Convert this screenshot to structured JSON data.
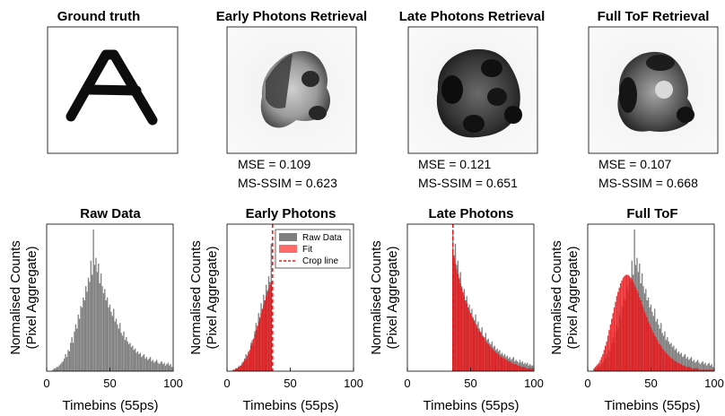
{
  "figure": {
    "image_titles": [
      "Ground truth",
      "Early Photons Retrieval",
      "Late Photons Retrieval",
      "Full ToF Retrieval"
    ],
    "metrics": [
      {
        "mse": "MSE = 0.109",
        "msssim": "MS-SSIM = 0.623"
      },
      {
        "mse": "MSE = 0.121",
        "msssim": "MS-SSIM = 0.651"
      },
      {
        "mse": "MSE = 0.107",
        "msssim": "MS-SSIM = 0.668"
      }
    ],
    "histogram_titles": [
      "Raw Data",
      "Early Photons",
      "Late Photons",
      "Full ToF"
    ],
    "xlabel": "Timebins (55ps)",
    "ylabel_line1": "Normalised Counts",
    "ylabel_line2": "(Pixel Aggregate)",
    "legend": {
      "raw": "Raw Data",
      "fit": "Fit",
      "crop": "Crop line"
    }
  },
  "colors": {
    "raw": "#7f7f7f",
    "fit": "#e8181c",
    "fit_light": "#ff6a6a",
    "crop": "#e8181c"
  },
  "chart_data": [
    {
      "type": "bar",
      "title": "Raw Data",
      "xlabel": "Timebins (55ps)",
      "ylabel": "Normalised Counts (Pixel Aggregate)",
      "xlim": [
        0,
        100
      ],
      "xticks": [
        "0",
        "50",
        "100"
      ],
      "x": [
        5,
        6,
        7,
        8,
        9,
        10,
        11,
        12,
        13,
        14,
        15,
        16,
        17,
        18,
        19,
        20,
        21,
        22,
        23,
        24,
        25,
        26,
        27,
        28,
        29,
        30,
        31,
        32,
        33,
        34,
        35,
        36,
        37,
        38,
        39,
        40,
        41,
        42,
        43,
        44,
        45,
        46,
        47,
        48,
        49,
        50,
        51,
        52,
        53,
        54,
        55,
        56,
        57,
        58,
        59,
        60,
        61,
        62,
        63,
        64,
        65,
        66,
        67,
        68,
        69,
        70,
        71,
        72,
        73,
        74,
        75,
        76,
        77,
        78,
        79,
        80,
        81,
        82,
        83,
        84,
        85,
        86,
        87,
        88,
        89,
        90,
        91,
        92,
        93,
        94,
        95,
        96,
        97,
        98,
        99
      ],
      "values": [
        0.01,
        0.02,
        0.02,
        0.03,
        0.03,
        0.04,
        0.05,
        0.06,
        0.07,
        0.09,
        0.12,
        0.1,
        0.15,
        0.14,
        0.2,
        0.24,
        0.2,
        0.28,
        0.33,
        0.3,
        0.4,
        0.37,
        0.46,
        0.45,
        0.52,
        0.5,
        0.6,
        0.56,
        0.66,
        0.63,
        0.78,
        0.68,
        1.0,
        0.75,
        0.8,
        0.7,
        0.76,
        0.62,
        0.69,
        0.6,
        0.55,
        0.58,
        0.5,
        0.52,
        0.45,
        0.47,
        0.42,
        0.39,
        0.44,
        0.35,
        0.37,
        0.33,
        0.3,
        0.34,
        0.27,
        0.25,
        0.28,
        0.22,
        0.24,
        0.21,
        0.19,
        0.2,
        0.17,
        0.18,
        0.15,
        0.16,
        0.13,
        0.14,
        0.12,
        0.13,
        0.1,
        0.11,
        0.12,
        0.09,
        0.1,
        0.08,
        0.09,
        0.1,
        0.07,
        0.08,
        0.06,
        0.07,
        0.08,
        0.06,
        0.05,
        0.06,
        0.07,
        0.05,
        0.06,
        0.04,
        0.05,
        0.06,
        0.04,
        0.05,
        0.03
      ]
    },
    {
      "type": "bar",
      "title": "Early Photons",
      "xlabel": "Timebins (55ps)",
      "ylabel": "Normalised Counts (Pixel Aggregate)",
      "xlim": [
        0,
        100
      ],
      "xticks": [
        "0",
        "50",
        "100"
      ],
      "crop_line": 36,
      "legend": [
        "Raw Data",
        "Fit",
        "Crop line"
      ],
      "legend_position": "top-right",
      "x": [
        5,
        6,
        7,
        8,
        9,
        10,
        11,
        12,
        13,
        14,
        15,
        16,
        17,
        18,
        19,
        20,
        21,
        22,
        23,
        24,
        25,
        26,
        27,
        28,
        29,
        30,
        31,
        32,
        33,
        34,
        35
      ],
      "raw_values": [
        0.01,
        0.01,
        0.02,
        0.02,
        0.03,
        0.04,
        0.04,
        0.06,
        0.07,
        0.09,
        0.12,
        0.08,
        0.14,
        0.12,
        0.2,
        0.22,
        0.18,
        0.28,
        0.34,
        0.29,
        0.41,
        0.37,
        0.48,
        0.44,
        0.54,
        0.5,
        0.61,
        0.57,
        0.67,
        0.63,
        0.9
      ],
      "fit_values": [
        0.01,
        0.01,
        0.02,
        0.02,
        0.03,
        0.03,
        0.04,
        0.05,
        0.06,
        0.08,
        0.09,
        0.11,
        0.13,
        0.15,
        0.18,
        0.2,
        0.23,
        0.26,
        0.29,
        0.32,
        0.35,
        0.38,
        0.41,
        0.44,
        0.47,
        0.5,
        0.53,
        0.56,
        0.58,
        0.61,
        0.63
      ]
    },
    {
      "type": "bar",
      "title": "Late Photons",
      "xlabel": "Timebins (55ps)",
      "ylabel": "Normalised Counts (Pixel Aggregate)",
      "xlim": [
        0,
        100
      ],
      "xticks": [
        "0",
        "50",
        "100"
      ],
      "crop_line": 36,
      "x": [
        36,
        37,
        38,
        39,
        40,
        41,
        42,
        43,
        44,
        45,
        46,
        47,
        48,
        49,
        50,
        51,
        52,
        53,
        54,
        55,
        56,
        57,
        58,
        59,
        60,
        61,
        62,
        63,
        64,
        65,
        66,
        67,
        68,
        69,
        70,
        71,
        72,
        73,
        74,
        75,
        76,
        77,
        78,
        79,
        80,
        81,
        82,
        83,
        84,
        85,
        86,
        87,
        88,
        89,
        90,
        91,
        92,
        93,
        94,
        95,
        96,
        97,
        98,
        99
      ],
      "raw_values": [
        1.0,
        0.82,
        0.9,
        0.75,
        0.78,
        0.66,
        0.7,
        0.6,
        0.55,
        0.58,
        0.5,
        0.53,
        0.45,
        0.47,
        0.41,
        0.44,
        0.38,
        0.36,
        0.4,
        0.33,
        0.35,
        0.3,
        0.28,
        0.31,
        0.25,
        0.24,
        0.27,
        0.22,
        0.23,
        0.2,
        0.19,
        0.21,
        0.17,
        0.18,
        0.15,
        0.16,
        0.14,
        0.15,
        0.12,
        0.13,
        0.11,
        0.12,
        0.1,
        0.11,
        0.09,
        0.1,
        0.08,
        0.09,
        0.1,
        0.07,
        0.08,
        0.07,
        0.06,
        0.08,
        0.06,
        0.07,
        0.05,
        0.06,
        0.05,
        0.06,
        0.04,
        0.05,
        0.04,
        0.04
      ],
      "fit_values": [
        0.84,
        0.8,
        0.76,
        0.72,
        0.69,
        0.65,
        0.62,
        0.59,
        0.56,
        0.53,
        0.5,
        0.48,
        0.45,
        0.43,
        0.41,
        0.39,
        0.37,
        0.35,
        0.33,
        0.31,
        0.3,
        0.28,
        0.27,
        0.25,
        0.24,
        0.23,
        0.21,
        0.2,
        0.19,
        0.18,
        0.17,
        0.16,
        0.15,
        0.14,
        0.13,
        0.13,
        0.12,
        0.11,
        0.1,
        0.1,
        0.09,
        0.09,
        0.08,
        0.08,
        0.07,
        0.07,
        0.06,
        0.06,
        0.05,
        0.05,
        0.05,
        0.04,
        0.04,
        0.04,
        0.03,
        0.03,
        0.03,
        0.03,
        0.02,
        0.02,
        0.02,
        0.02,
        0.02,
        0.02
      ]
    },
    {
      "type": "bar",
      "title": "Full ToF",
      "xlabel": "Timebins (55ps)",
      "ylabel": "Normalised Counts (Pixel Aggregate)",
      "xlim": [
        0,
        100
      ],
      "xticks": [
        "0",
        "50",
        "100"
      ],
      "x": [
        5,
        6,
        7,
        8,
        9,
        10,
        11,
        12,
        13,
        14,
        15,
        16,
        17,
        18,
        19,
        20,
        21,
        22,
        23,
        24,
        25,
        26,
        27,
        28,
        29,
        30,
        31,
        32,
        33,
        34,
        35,
        36,
        37,
        38,
        39,
        40,
        41,
        42,
        43,
        44,
        45,
        46,
        47,
        48,
        49,
        50,
        51,
        52,
        53,
        54,
        55,
        56,
        57,
        58,
        59,
        60,
        61,
        62,
        63,
        64,
        65,
        66,
        67,
        68,
        69,
        70,
        71,
        72,
        73,
        74,
        75,
        76,
        77,
        78,
        79,
        80,
        81,
        82,
        83,
        84,
        85,
        86,
        87,
        88,
        89,
        90,
        91,
        92,
        93,
        94,
        95,
        96,
        97,
        98,
        99
      ],
      "raw_values": [
        0.01,
        0.02,
        0.02,
        0.03,
        0.03,
        0.04,
        0.05,
        0.06,
        0.07,
        0.09,
        0.12,
        0.1,
        0.15,
        0.14,
        0.2,
        0.24,
        0.2,
        0.28,
        0.33,
        0.3,
        0.4,
        0.37,
        0.46,
        0.45,
        0.52,
        0.5,
        0.6,
        0.56,
        0.66,
        0.63,
        0.78,
        0.68,
        1.0,
        0.75,
        0.8,
        0.7,
        0.76,
        0.62,
        0.69,
        0.6,
        0.55,
        0.58,
        0.5,
        0.52,
        0.45,
        0.47,
        0.42,
        0.39,
        0.44,
        0.35,
        0.37,
        0.33,
        0.3,
        0.34,
        0.27,
        0.25,
        0.28,
        0.22,
        0.24,
        0.21,
        0.19,
        0.2,
        0.17,
        0.18,
        0.15,
        0.16,
        0.13,
        0.14,
        0.12,
        0.13,
        0.1,
        0.11,
        0.12,
        0.09,
        0.1,
        0.08,
        0.09,
        0.1,
        0.07,
        0.08,
        0.06,
        0.07,
        0.08,
        0.06,
        0.05,
        0.06,
        0.07,
        0.05,
        0.06,
        0.04,
        0.05,
        0.06,
        0.04,
        0.05,
        0.03
      ],
      "fit_values": [
        0.02,
        0.03,
        0.04,
        0.05,
        0.06,
        0.08,
        0.1,
        0.12,
        0.15,
        0.18,
        0.21,
        0.25,
        0.29,
        0.33,
        0.37,
        0.41,
        0.45,
        0.49,
        0.53,
        0.56,
        0.59,
        0.62,
        0.64,
        0.66,
        0.67,
        0.68,
        0.68,
        0.68,
        0.67,
        0.66,
        0.65,
        0.63,
        0.61,
        0.59,
        0.57,
        0.55,
        0.52,
        0.5,
        0.47,
        0.45,
        0.42,
        0.4,
        0.38,
        0.35,
        0.33,
        0.31,
        0.29,
        0.27,
        0.25,
        0.24,
        0.22,
        0.2,
        0.19,
        0.18,
        0.16,
        0.15,
        0.14,
        0.13,
        0.12,
        0.11,
        0.1,
        0.09,
        0.09,
        0.08,
        0.07,
        0.07,
        0.06,
        0.06,
        0.05,
        0.05,
        0.04,
        0.04,
        0.04,
        0.03,
        0.03,
        0.03,
        0.03,
        0.02,
        0.02,
        0.02,
        0.02,
        0.02,
        0.02,
        0.01,
        0.01,
        0.01,
        0.01,
        0.01,
        0.01,
        0.01,
        0.01,
        0.01,
        0.01,
        0.01,
        0.01
      ]
    }
  ]
}
